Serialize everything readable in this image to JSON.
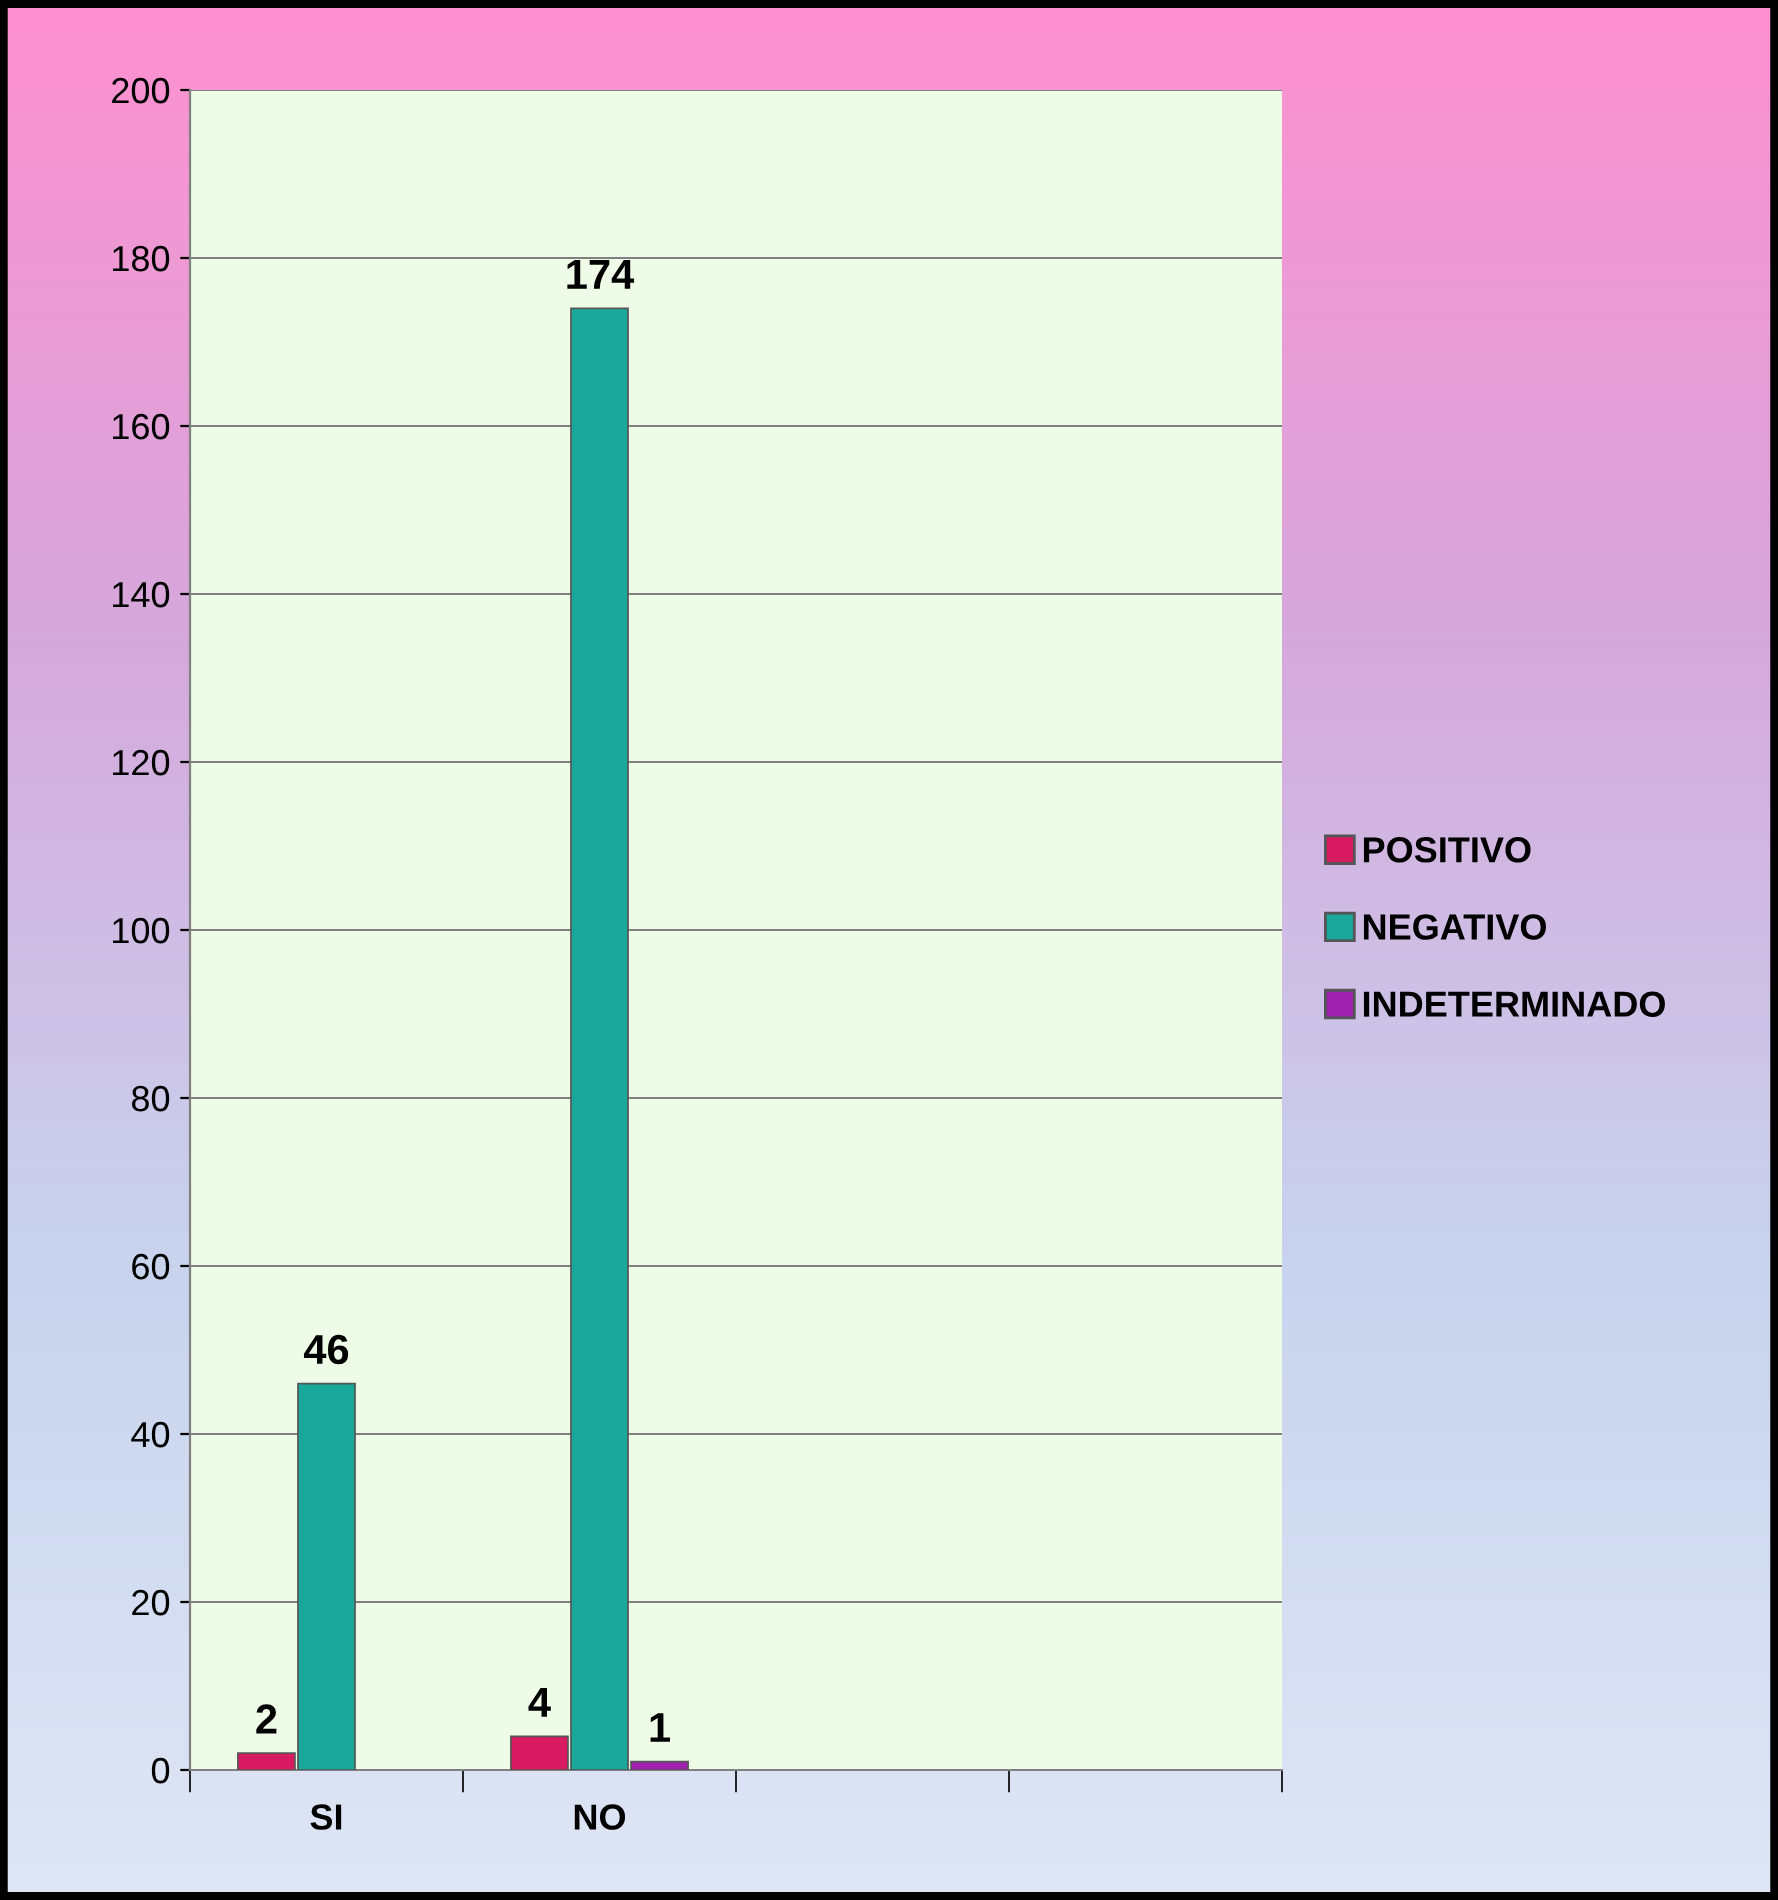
{
  "chart_data": {
    "type": "bar",
    "categories": [
      "SI",
      "NO",
      null,
      null
    ],
    "series": [
      {
        "name": "POSITIVO",
        "color": "#d81b60",
        "values": [
          2,
          4,
          null,
          null
        ]
      },
      {
        "name": "NEGATIVO",
        "color": "#1aa89a",
        "values": [
          46,
          174,
          null,
          null
        ]
      },
      {
        "name": "INDETERMINADO",
        "color": "#a020b0",
        "values": [
          null,
          1,
          null,
          null
        ]
      }
    ],
    "ylim": [
      0,
      200
    ],
    "yticks": [
      0,
      20,
      40,
      60,
      80,
      100,
      120,
      140,
      160,
      180,
      200
    ],
    "grid": "y",
    "legend": "right",
    "data_labels": true
  }
}
